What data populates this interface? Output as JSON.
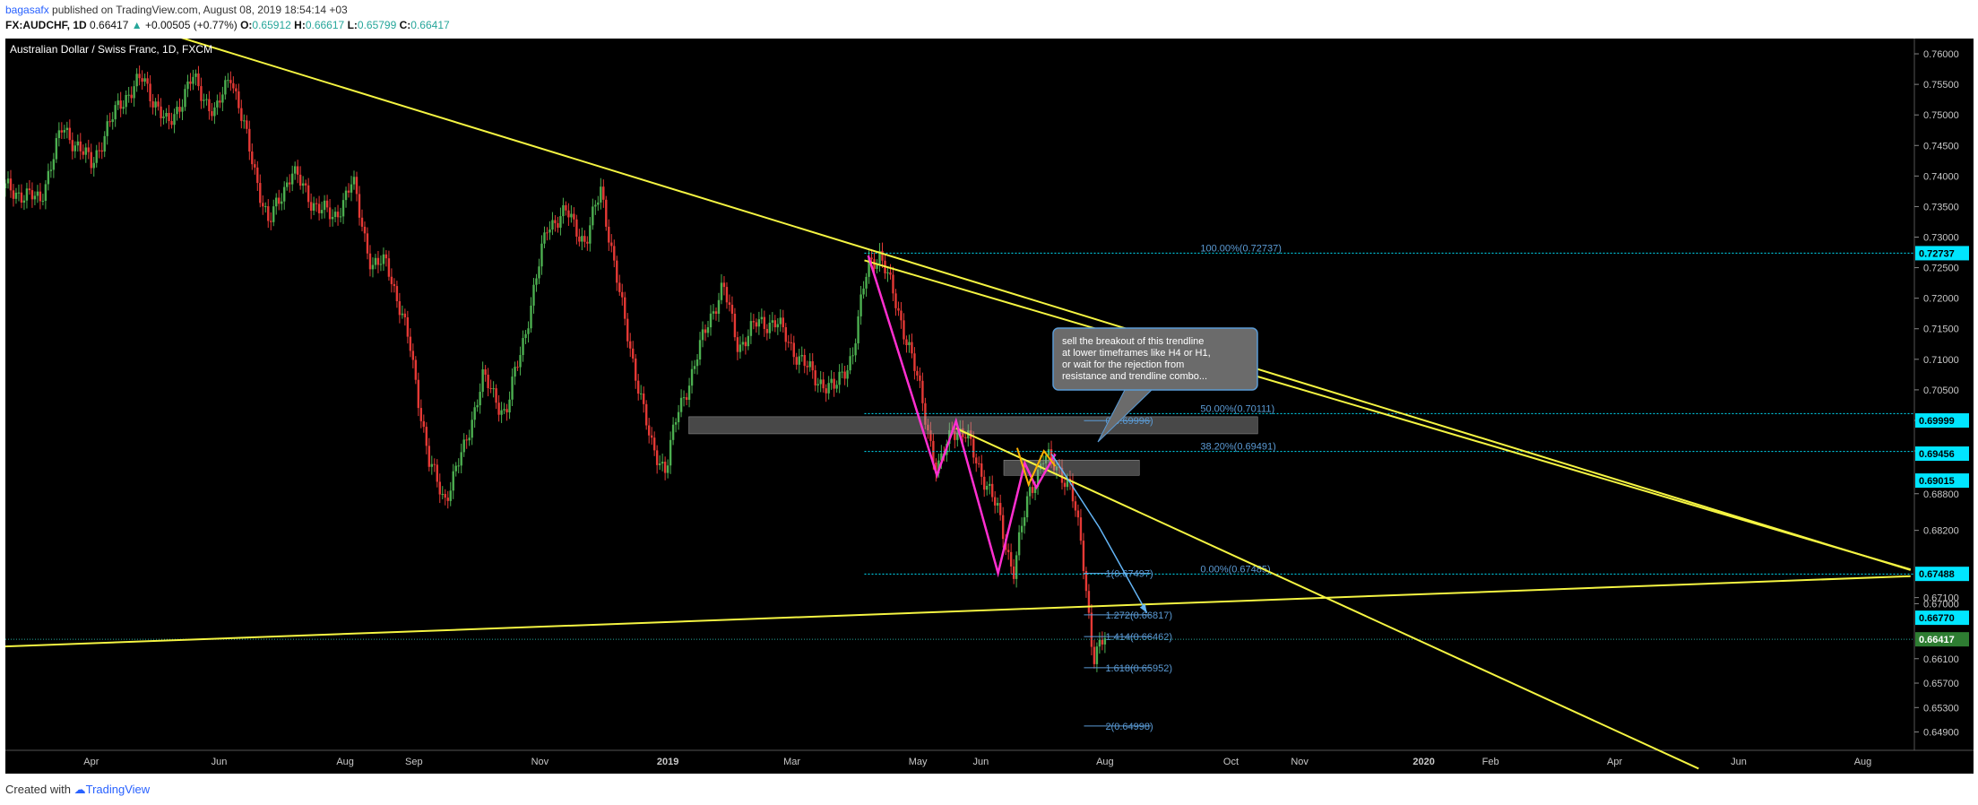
{
  "header": {
    "author": "bagasafx",
    "published": " published on TradingView.com, August 08, 2019 18:54:14 +03",
    "symbol": "FX:AUDCHF, 1D",
    "last": "0.66417",
    "change": "+0.00505 (+0.77%)",
    "o_label": "O:",
    "o": "0.65912",
    "h_label": "H:",
    "h": "0.66617",
    "l_label": "L:",
    "l": "0.65799",
    "c_label": "C:",
    "c": "0.66417"
  },
  "footer": {
    "created": "Created with",
    "brand": "TradingView"
  },
  "colors": {
    "background": "#000000",
    "up": "#26a69a",
    "candle_up": "#4caf50",
    "candle_down": "#e53935",
    "trendline": "#f5f542",
    "fib": "#5b9bd5",
    "pink": "#ff2fd0",
    "cyan_label": "#00e5ff",
    "last_label": "#2e7d32"
  },
  "chart_data": {
    "type": "candlestick",
    "title": "Australian Dollar / Swiss Franc, 1D, FXCM",
    "y_ticks": [
      "0.76000",
      "0.75500",
      "0.75000",
      "0.74500",
      "0.74000",
      "0.73500",
      "0.73000",
      "0.72500",
      "0.72000",
      "0.71500",
      "0.71000",
      "0.70500",
      "0.70000",
      "0.69500",
      "0.68800",
      "0.68200",
      "0.67100",
      "0.67000",
      "0.66100",
      "0.65700",
      "0.65300",
      "0.64900"
    ],
    "x_ticks": [
      "Apr",
      "Jun",
      "Aug",
      "Sep",
      "Nov",
      "2019",
      "Mar",
      "May",
      "Jun",
      "Aug",
      "Oct",
      "Nov",
      "2020",
      "Feb",
      "Apr",
      "Jun",
      "Aug"
    ],
    "ylim": [
      0.646,
      0.7625
    ],
    "price_labels": [
      {
        "value": 0.72737,
        "text": "0.72737"
      },
      {
        "value": 0.69999,
        "text": "0.69999"
      },
      {
        "value": 0.69456,
        "text": "0.69456"
      },
      {
        "value": 0.69015,
        "text": "0.69015"
      },
      {
        "value": 0.67488,
        "text": "0.67488"
      },
      {
        "value": 0.6677,
        "text": "0.66770"
      },
      {
        "value": 0.66417,
        "text": "0.66417"
      }
    ],
    "fib_retracement": [
      {
        "value": 0.72737,
        "text": "100.00%(0.72737)"
      },
      {
        "value": 0.70111,
        "text": "50.00%(0.70111)"
      },
      {
        "value": 0.69491,
        "text": "38.20%(0.69491)"
      },
      {
        "value": 0.67485,
        "text": "0.00%(0.67485)"
      }
    ],
    "fib_extension": [
      {
        "value": 0.69996,
        "text": "0(0.69996)"
      },
      {
        "value": 0.67497,
        "text": "1(0.67497)"
      },
      {
        "value": 0.66817,
        "text": "1.272(0.66817)"
      },
      {
        "value": 0.66462,
        "text": "1.414(0.66462)"
      },
      {
        "value": 0.65952,
        "text": "1.618(0.65952)"
      },
      {
        "value": 0.64998,
        "text": "2(0.64998)"
      }
    ],
    "callout": [
      "sell the breakout of this trendline",
      "at lower timeframes like H4 or H1,",
      "or wait for the rejection from",
      "resistance and trendline combo..."
    ],
    "path_points": [
      [
        0.0,
        0.738
      ],
      [
        0.018,
        0.736
      ],
      [
        0.03,
        0.748
      ],
      [
        0.045,
        0.742
      ],
      [
        0.06,
        0.752
      ],
      [
        0.072,
        0.756
      ],
      [
        0.085,
        0.748
      ],
      [
        0.098,
        0.756
      ],
      [
        0.11,
        0.75
      ],
      [
        0.118,
        0.757
      ],
      [
        0.128,
        0.744
      ],
      [
        0.138,
        0.732
      ],
      [
        0.15,
        0.741
      ],
      [
        0.16,
        0.736
      ],
      [
        0.172,
        0.733
      ],
      [
        0.182,
        0.739
      ],
      [
        0.192,
        0.725
      ],
      [
        0.2,
        0.726
      ],
      [
        0.212,
        0.712
      ],
      [
        0.222,
        0.693
      ],
      [
        0.23,
        0.687
      ],
      [
        0.24,
        0.695
      ],
      [
        0.25,
        0.707
      ],
      [
        0.262,
        0.701
      ],
      [
        0.272,
        0.714
      ],
      [
        0.284,
        0.732
      ],
      [
        0.294,
        0.734
      ],
      [
        0.304,
        0.729
      ],
      [
        0.312,
        0.738
      ],
      [
        0.322,
        0.72
      ],
      [
        0.33,
        0.708
      ],
      [
        0.338,
        0.696
      ],
      [
        0.346,
        0.692
      ],
      [
        0.352,
        0.701
      ],
      [
        0.36,
        0.708
      ],
      [
        0.368,
        0.716
      ],
      [
        0.376,
        0.722
      ],
      [
        0.384,
        0.712
      ],
      [
        0.394,
        0.716
      ],
      [
        0.404,
        0.716
      ],
      [
        0.414,
        0.711
      ],
      [
        0.424,
        0.707
      ],
      [
        0.434,
        0.705
      ],
      [
        0.444,
        0.711
      ],
      [
        0.452,
        0.726
      ],
      [
        0.458,
        0.727
      ],
      [
        0.466,
        0.72
      ],
      [
        0.474,
        0.711
      ],
      [
        0.48,
        0.704
      ],
      [
        0.488,
        0.691
      ],
      [
        0.496,
        0.699
      ],
      [
        0.504,
        0.697
      ],
      [
        0.512,
        0.691
      ],
      [
        0.52,
        0.685
      ],
      [
        0.528,
        0.675
      ],
      [
        0.536,
        0.688
      ],
      [
        0.544,
        0.694
      ],
      [
        0.552,
        0.692
      ],
      [
        0.558,
        0.689
      ],
      [
        0.564,
        0.679
      ],
      [
        0.57,
        0.661
      ],
      [
        0.576,
        0.6642
      ]
    ],
    "trendlines": [
      {
        "from": [
          0.0,
          0.7715
        ],
        "to": [
          0.998,
          0.6755
        ]
      },
      {
        "from": [
          0.0,
          0.663
        ],
        "to": [
          0.998,
          0.6745
        ]
      },
      {
        "from": [
          0.498,
          0.6987
        ],
        "to": [
          0.887,
          0.643
        ]
      },
      {
        "from": [
          0.45,
          0.7262
        ],
        "to": [
          0.998,
          0.6756
        ]
      }
    ],
    "zones": [
      {
        "from": [
          0.358,
          0.7006
        ],
        "to": [
          0.656,
          0.6978
        ]
      },
      {
        "from": [
          0.523,
          0.6935
        ],
        "to": [
          0.594,
          0.691
        ]
      }
    ],
    "pink_path": [
      [
        0.452,
        0.727
      ],
      [
        0.488,
        0.691
      ],
      [
        0.498,
        0.6999
      ],
      [
        0.52,
        0.675
      ],
      [
        0.534,
        0.693
      ],
      [
        0.54,
        0.689
      ],
      [
        0.55,
        0.6945
      ]
    ],
    "orange_path": [
      [
        0.53,
        0.6955
      ],
      [
        0.536,
        0.6895
      ],
      [
        0.544,
        0.695
      ],
      [
        0.55,
        0.6925
      ]
    ],
    "blue_arrow": [
      [
        0.548,
        0.6945
      ],
      [
        0.573,
        0.6825
      ],
      [
        0.598,
        0.6685
      ]
    ]
  }
}
